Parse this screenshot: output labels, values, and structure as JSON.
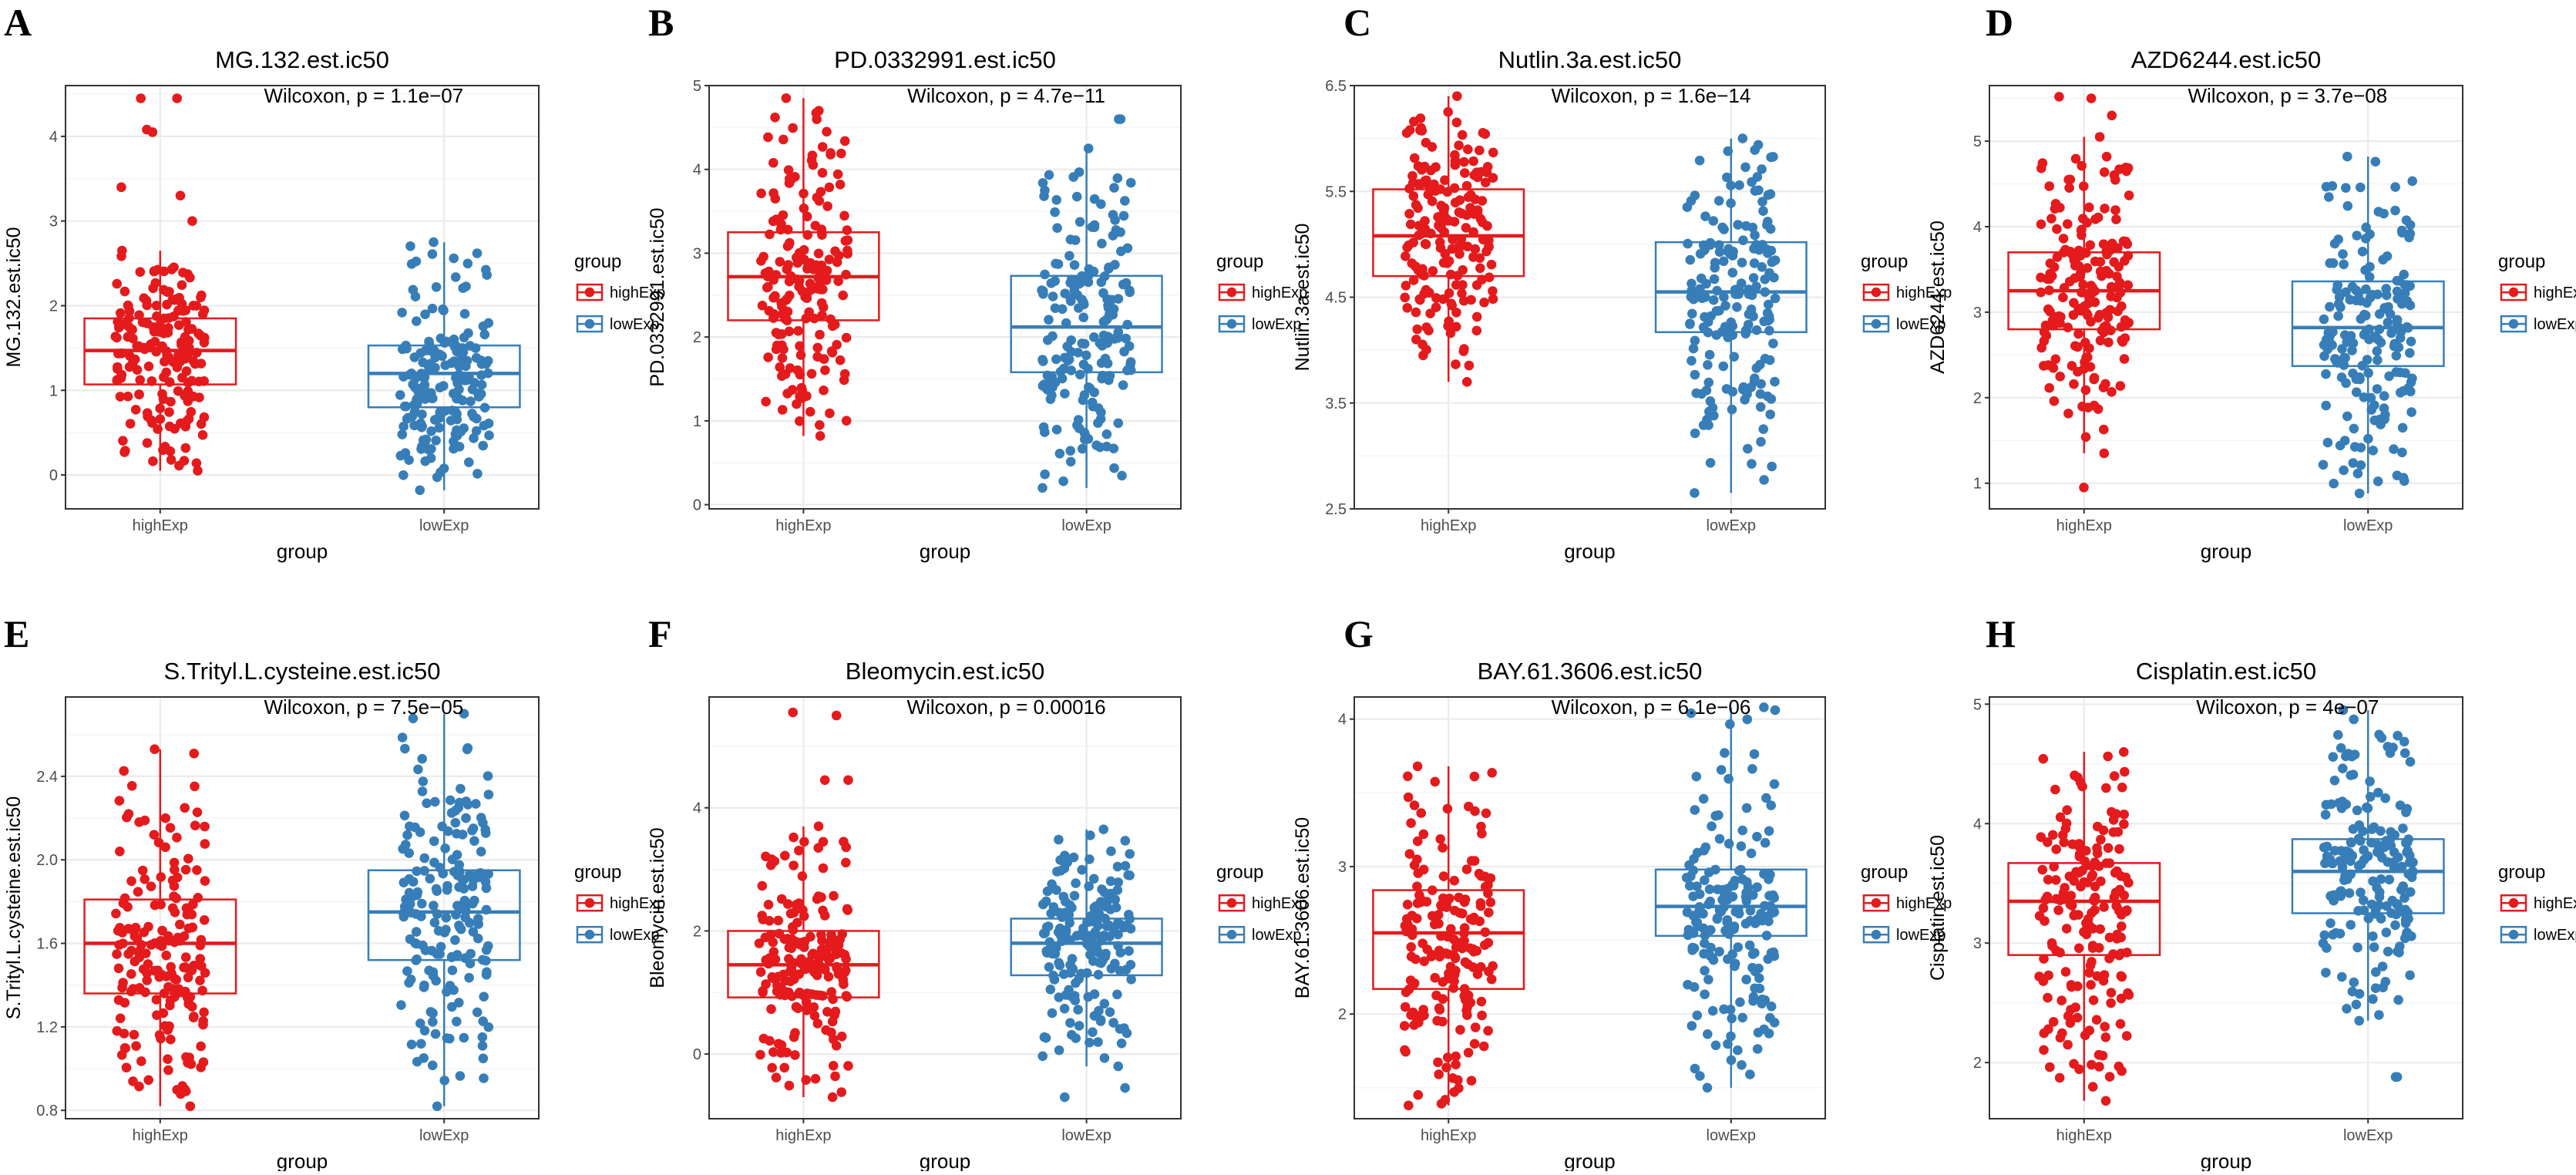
{
  "figure": {
    "panel_letters": [
      "A",
      "B",
      "C",
      "D",
      "E",
      "F",
      "G",
      "H"
    ]
  },
  "colors": {
    "highExp": "#E41A1C",
    "lowExp": "#377EB8",
    "grid_major": "#EBEBEB",
    "grid_minor": "#F5F5F5",
    "panel_border": "#333333",
    "text": "#000000",
    "axis_text": "#4D4D4D"
  },
  "chart_data": [
    {
      "type": "box",
      "panel": "A",
      "title": "MG.132.est.ic50",
      "xlabel": "group",
      "ylabel": "MG.132.est.ic50",
      "categories": [
        "highExp",
        "lowExp"
      ],
      "ylim": [
        -0.4,
        4.6
      ],
      "yticks": [
        0,
        1,
        2,
        3,
        4
      ],
      "ytick_labels": [
        "0",
        "1",
        "2",
        "3",
        "4"
      ],
      "annotation": "Wilcoxon, p = 1.1e−07",
      "series": [
        {
          "name": "highExp",
          "q1": 1.07,
          "median": 1.47,
          "q3": 1.85,
          "whisker_low": 0.05,
          "whisker_high": 2.65,
          "min": 0.05,
          "max": 4.45,
          "outliers": [
            3.0,
            3.3,
            3.4,
            4.05,
            4.08,
            4.45,
            4.45
          ]
        },
        {
          "name": "lowExp",
          "q1": 0.8,
          "median": 1.2,
          "q3": 1.53,
          "whisker_low": -0.18,
          "whisker_high": 2.75,
          "min": -0.18,
          "max": 2.75,
          "outliers": []
        }
      ],
      "legend": {
        "title": "group",
        "entries": [
          "highExp",
          "lowExp"
        ],
        "position": "right"
      }
    },
    {
      "type": "box",
      "panel": "B",
      "title": "PD.0332991.est.ic50",
      "xlabel": "group",
      "ylabel": "PD.0332991.est.ic50",
      "categories": [
        "highExp",
        "lowExp"
      ],
      "ylim": [
        -0.05,
        5.0
      ],
      "yticks": [
        0,
        1,
        2,
        3,
        4,
        5
      ],
      "ytick_labels": [
        "0",
        "1",
        "2",
        "3",
        "4",
        "5"
      ],
      "annotation": "Wilcoxon, p = 4.7e−11",
      "series": [
        {
          "name": "highExp",
          "q1": 2.2,
          "median": 2.72,
          "q3": 3.25,
          "whisker_low": 0.82,
          "whisker_high": 4.85,
          "min": 0.82,
          "max": 4.85,
          "outliers": []
        },
        {
          "name": "lowExp",
          "q1": 1.58,
          "median": 2.12,
          "q3": 2.73,
          "whisker_low": 0.2,
          "whisker_high": 4.25,
          "min": 0.2,
          "max": 4.6,
          "outliers": [
            4.6,
            4.6
          ]
        }
      ],
      "legend": {
        "title": "group",
        "entries": [
          "highExp",
          "lowExp"
        ],
        "position": "right"
      }
    },
    {
      "type": "box",
      "panel": "C",
      "title": "Nutlin.3a.est.ic50",
      "xlabel": "group",
      "ylabel": "Nutlin.3a.est.ic50",
      "categories": [
        "highExp",
        "lowExp"
      ],
      "ylim": [
        2.5,
        6.5
      ],
      "yticks": [
        2.5,
        3.5,
        4.5,
        5.5,
        6.5
      ],
      "ytick_labels": [
        "2.5",
        "3.5",
        "4.5",
        "5.5",
        "6.5"
      ],
      "annotation": "Wilcoxon, p = 1.6e−14",
      "series": [
        {
          "name": "highExp",
          "q1": 4.7,
          "median": 5.08,
          "q3": 5.52,
          "whisker_low": 3.7,
          "whisker_high": 6.4,
          "min": 3.7,
          "max": 6.4,
          "outliers": []
        },
        {
          "name": "lowExp",
          "q1": 4.17,
          "median": 4.55,
          "q3": 5.02,
          "whisker_low": 2.65,
          "whisker_high": 6.0,
          "min": 2.65,
          "max": 6.0,
          "outliers": []
        }
      ],
      "legend": {
        "title": "group",
        "entries": [
          "highExp",
          "lowExp"
        ],
        "position": "right"
      }
    },
    {
      "type": "box",
      "panel": "D",
      "title": "AZD6244.est.ic50",
      "xlabel": "group",
      "ylabel": "AZD6244.est.ic50",
      "categories": [
        "highExp",
        "lowExp"
      ],
      "ylim": [
        0.7,
        5.65
      ],
      "yticks": [
        1,
        2,
        3,
        4,
        5
      ],
      "ytick_labels": [
        "1",
        "2",
        "3",
        "4",
        "5"
      ],
      "annotation": "Wilcoxon, p = 3.7e−08",
      "series": [
        {
          "name": "highExp",
          "q1": 2.8,
          "median": 3.25,
          "q3": 3.7,
          "whisker_low": 1.35,
          "whisker_high": 5.05,
          "min": 0.95,
          "max": 5.52,
          "outliers": [
            0.95,
            5.52,
            5.5,
            5.3
          ]
        },
        {
          "name": "lowExp",
          "q1": 2.37,
          "median": 2.82,
          "q3": 3.36,
          "whisker_low": 0.88,
          "whisker_high": 4.82,
          "min": 0.88,
          "max": 4.82,
          "outliers": []
        }
      ],
      "legend": {
        "title": "group",
        "entries": [
          "highExp",
          "lowExp"
        ],
        "position": "right"
      }
    },
    {
      "type": "box",
      "panel": "E",
      "title": "S.Trityl.L.cysteine.est.ic50",
      "xlabel": "group",
      "ylabel": "S.Trityl.L.cysteine.est.ic50",
      "categories": [
        "highExp",
        "lowExp"
      ],
      "ylim": [
        0.76,
        2.78
      ],
      "yticks": [
        0.8,
        1.2,
        1.6,
        2.0,
        2.4
      ],
      "ytick_labels": [
        "0.8",
        "1.2",
        "1.6",
        "2.0",
        "2.4"
      ],
      "annotation": "Wilcoxon, p = 7.5e−05",
      "series": [
        {
          "name": "highExp",
          "q1": 1.36,
          "median": 1.6,
          "q3": 1.81,
          "whisker_low": 0.82,
          "whisker_high": 2.53,
          "min": 0.82,
          "max": 2.53,
          "outliers": []
        },
        {
          "name": "lowExp",
          "q1": 1.52,
          "median": 1.75,
          "q3": 1.95,
          "whisker_low": 0.82,
          "whisker_high": 2.7,
          "min": 0.82,
          "max": 2.7,
          "outliers": []
        }
      ],
      "legend": {
        "title": "group",
        "entries": [
          "highExp",
          "lowExp"
        ],
        "position": "right"
      }
    },
    {
      "type": "box",
      "panel": "F",
      "title": "Bleomycin.est.ic50",
      "xlabel": "group",
      "ylabel": "Bleomycin.est.ic50",
      "categories": [
        "highExp",
        "lowExp"
      ],
      "ylim": [
        -1.05,
        5.8
      ],
      "yticks": [
        0,
        2,
        4
      ],
      "ytick_labels": [
        "0",
        "2",
        "4"
      ],
      "annotation": "Wilcoxon, p = 0.00016",
      "series": [
        {
          "name": "highExp",
          "q1": 0.92,
          "median": 1.45,
          "q3": 2.0,
          "whisker_low": -0.7,
          "whisker_high": 3.7,
          "min": -0.7,
          "max": 5.55,
          "outliers": [
            4.45,
            4.45,
            5.5,
            5.55
          ]
        },
        {
          "name": "lowExp",
          "q1": 1.28,
          "median": 1.8,
          "q3": 2.2,
          "whisker_low": -0.2,
          "whisker_high": 3.65,
          "min": -0.7,
          "max": 3.7,
          "outliers": [
            -0.7,
            -0.55
          ]
        }
      ],
      "legend": {
        "title": "group",
        "entries": [
          "highExp",
          "lowExp"
        ],
        "position": "right"
      }
    },
    {
      "type": "box",
      "panel": "G",
      "title": "BAY.61.3606.est.ic50",
      "xlabel": "group",
      "ylabel": "BAY.61.3606.est.ic50",
      "categories": [
        "highExp",
        "lowExp"
      ],
      "ylim": [
        1.29,
        4.15
      ],
      "yticks": [
        2,
        3,
        4
      ],
      "ytick_labels": [
        "2",
        "3",
        "4"
      ],
      "annotation": "Wilcoxon, p = 6.1e−06",
      "series": [
        {
          "name": "highExp",
          "q1": 2.17,
          "median": 2.55,
          "q3": 2.84,
          "whisker_low": 1.38,
          "whisker_high": 3.68,
          "min": 1.38,
          "max": 3.68,
          "outliers": []
        },
        {
          "name": "lowExp",
          "q1": 2.53,
          "median": 2.73,
          "q3": 2.98,
          "whisker_low": 1.5,
          "whisker_high": 4.08,
          "min": 1.5,
          "max": 4.08,
          "outliers": []
        }
      ],
      "legend": {
        "title": "group",
        "entries": [
          "highExp",
          "lowExp"
        ],
        "position": "right"
      }
    },
    {
      "type": "box",
      "panel": "H",
      "title": "Cisplatin.est.ic50",
      "xlabel": "group",
      "ylabel": "Cisplatin.est.ic50",
      "categories": [
        "highExp",
        "lowExp"
      ],
      "ylim": [
        1.53,
        5.06
      ],
      "yticks": [
        2,
        3,
        4,
        5
      ],
      "ytick_labels": [
        "2",
        "3",
        "4",
        "5"
      ],
      "annotation": "Wilcoxon, p = 4e−07",
      "series": [
        {
          "name": "highExp",
          "q1": 2.9,
          "median": 3.35,
          "q3": 3.67,
          "whisker_low": 1.68,
          "whisker_high": 4.6,
          "min": 1.68,
          "max": 4.6,
          "outliers": []
        },
        {
          "name": "lowExp",
          "q1": 3.25,
          "median": 3.6,
          "q3": 3.87,
          "whisker_low": 2.35,
          "whisker_high": 4.95,
          "min": 1.88,
          "max": 4.95,
          "outliers": [
            1.88,
            1.88
          ]
        }
      ],
      "legend": {
        "title": "group",
        "entries": [
          "highExp",
          "lowExp"
        ],
        "position": "right"
      }
    }
  ]
}
